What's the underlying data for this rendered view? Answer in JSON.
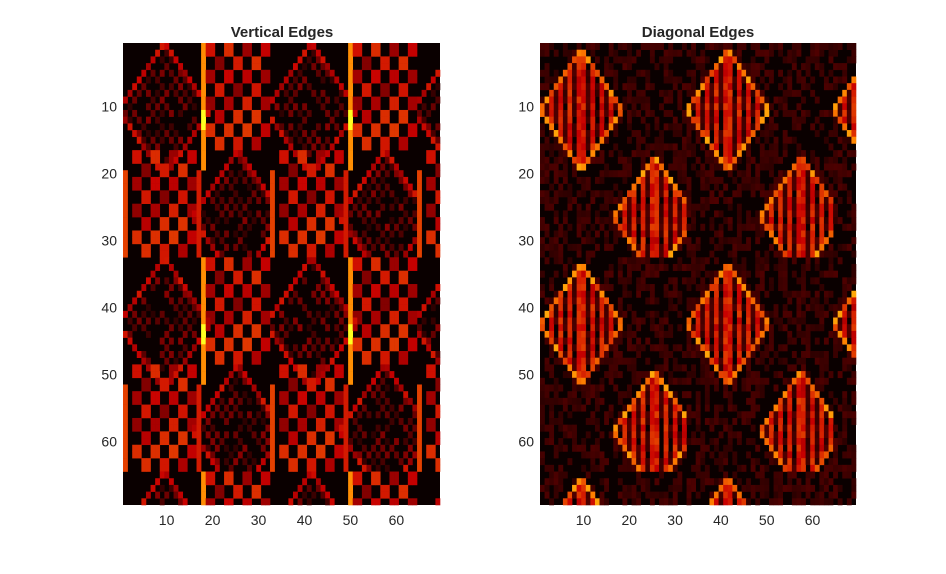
{
  "figure": {
    "background": "#ffffff"
  },
  "colormap": {
    "name": "hot",
    "stops": [
      "#0a0000",
      "#c80000",
      "#ff8000",
      "#ffff20"
    ]
  },
  "chart_data": [
    {
      "type": "heatmap",
      "title": "Vertical Edges",
      "rows": 69,
      "cols": 69,
      "xlim": [
        0.5,
        69.5
      ],
      "ylim": [
        0.5,
        69.5
      ],
      "y_direction": "reverse",
      "xticks": [
        10,
        20,
        30,
        40,
        50,
        60
      ],
      "yticks": [
        10,
        20,
        30,
        40,
        50,
        60
      ],
      "grid": false,
      "pattern": {
        "tile_size": [
          32,
          32
        ],
        "diamonds": [
          {
            "cx": 9.5,
            "cy": 10.5,
            "radius": 10,
            "intensity": 0.32
          },
          {
            "cx": 25.5,
            "cy": 26.5,
            "radius": 10,
            "intensity": 0.32
          }
        ],
        "checker_blocks": [
          {
            "x0": 19,
            "x1": 32,
            "y0": 1,
            "y1": 16
          },
          {
            "x0": 3,
            "x1": 16,
            "y0": 17,
            "y1": 32
          }
        ],
        "bright_columns": [
          {
            "x": 18,
            "y0": 1,
            "y1": 19,
            "intensity": 0.7,
            "peak_y": 12,
            "peak_intensity": 1.0
          },
          {
            "x": 34,
            "y0": 19,
            "y1": 35,
            "intensity": 0.7,
            "peak_y": 27,
            "peak_intensity": 1.0
          },
          {
            "x": 1,
            "y0": 20,
            "y1": 35,
            "intensity": 0.5
          },
          {
            "x": 33,
            "y0": 5,
            "y1": 19,
            "intensity": 0.45
          },
          {
            "x": 17,
            "y0": 20,
            "y1": 35,
            "intensity": 0.4
          }
        ]
      }
    },
    {
      "type": "heatmap",
      "title": "Diagonal Edges",
      "rows": 69,
      "cols": 69,
      "xlim": [
        0.5,
        69.5
      ],
      "ylim": [
        0.5,
        69.5
      ],
      "y_direction": "reverse",
      "xticks": [
        10,
        20,
        30,
        40,
        50,
        60
      ],
      "yticks": [
        10,
        20,
        30,
        40,
        50,
        60
      ],
      "grid": false,
      "pattern": {
        "tile_size": [
          32,
          32
        ],
        "diamonds": [
          {
            "cx": 9.5,
            "cy": 10.5,
            "radius": 9,
            "intensity": 0.62
          },
          {
            "cx": 25.5,
            "cy": 26.5,
            "radius": 9,
            "intensity": 0.62
          }
        ],
        "background_noise": 0.12
      }
    }
  ]
}
